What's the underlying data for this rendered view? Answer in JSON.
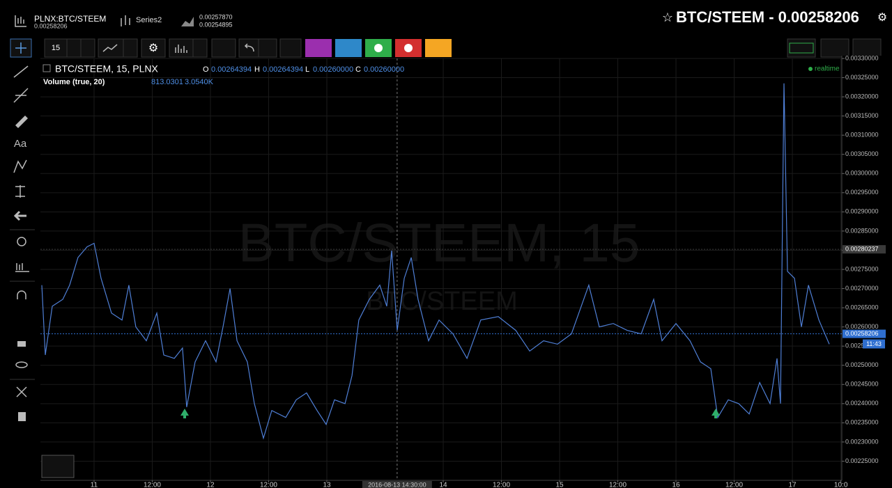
{
  "header": {
    "symbol": "PLNX:BTC/STEEM",
    "symbol_price": "0.00258206",
    "series": "Series2",
    "series_high": "0.00257870",
    "series_low": "0.00254895",
    "title": "BTC/STEEM - 0.00258206"
  },
  "toolbar": {
    "interval": "15",
    "left_text_tool": "Aa"
  },
  "legend": {
    "o": "O",
    "o_value": "0.00264394",
    "h": "H",
    "h_value": "0.00264394",
    "l": "L",
    "l_value": "0.00260000",
    "c": "C",
    "c_value": "0.00260000",
    "volume": "Volume (true, 20)",
    "volume_value": "813.0301",
    "volume_ma": "3.0540K",
    "status": "realtime"
  },
  "watermark": {
    "main": "BTC/STEEM, 15",
    "sub": "BTC/STEEM"
  },
  "chart_data": {
    "type": "line",
    "x": [
      10.551,
      10.581,
      10.641,
      10.731,
      10.79,
      10.862,
      10.94,
      11,
      11.06,
      11.15,
      11.24,
      11.299,
      11.359,
      11.449,
      11.539,
      11.599,
      11.689,
      11.76,
      11.796,
      11.868,
      11.958,
      12.048,
      12.108,
      12.168,
      12.228,
      12.317,
      12.377,
      12.455,
      12.527,
      12.647,
      12.737,
      12.826,
      12.916,
      12.994,
      13.066,
      13.156,
      13.216,
      13.275,
      13.365,
      13.455,
      13.515,
      13.557,
      13.605,
      13.665,
      13.725,
      13.784,
      13.874,
      13.964,
      14.084,
      14.204,
      14.323,
      14.473,
      14.623,
      14.743,
      14.862,
      14.982,
      15.102,
      15.251,
      15.341,
      15.461,
      15.581,
      15.701,
      15.808,
      15.88,
      16.0,
      16.12,
      16.21,
      16.299,
      16.359,
      16.449,
      16.539,
      16.629,
      16.719,
      16.808,
      16.868,
      16.898,
      16.928,
      16.958,
      17.018,
      17.078,
      17.138,
      17.228,
      17.317
    ],
    "series": [
      {
        "name": "BTC/STEEM, 15, PLNX",
        "color": "#4f7fd6",
        "values": [
          0.002709,
          0.002527,
          0.002654,
          0.002672,
          0.002709,
          0.002781,
          0.002809,
          0.002818,
          0.002727,
          0.002636,
          0.002618,
          0.002709,
          0.0026,
          0.002564,
          0.002636,
          0.002527,
          0.002518,
          0.002545,
          0.002391,
          0.002509,
          0.002564,
          0.002509,
          0.0026,
          0.0027,
          0.002564,
          0.002509,
          0.0024,
          0.00231,
          0.002382,
          0.002364,
          0.00241,
          0.002428,
          0.002382,
          0.002346,
          0.00241,
          0.0024,
          0.002473,
          0.002618,
          0.002672,
          0.002709,
          0.002654,
          0.002799,
          0.002591,
          0.002727,
          0.002781,
          0.002672,
          0.002564,
          0.002618,
          0.002582,
          0.002518,
          0.002618,
          0.002627,
          0.002591,
          0.002537,
          0.002564,
          0.002555,
          0.002582,
          0.002709,
          0.0026,
          0.002609,
          0.002591,
          0.002582,
          0.002672,
          0.002564,
          0.002609,
          0.002564,
          0.002509,
          0.002491,
          0.002364,
          0.00241,
          0.0024,
          0.002373,
          0.002455,
          0.0024,
          0.002518,
          0.0024,
          0.003235,
          0.002745,
          0.002727,
          0.0026,
          0.002709,
          0.002618,
          0.002555
        ]
      }
    ],
    "xlim": [
      10.539,
      17.425
    ],
    "xticks": [
      {
        "value": 11,
        "label": "11"
      },
      {
        "value": 11.5,
        "label": "12:00"
      },
      {
        "value": 12,
        "label": "12"
      },
      {
        "value": 12.5,
        "label": "12:00"
      },
      {
        "value": 13,
        "label": "13"
      },
      {
        "value": 14,
        "label": "14"
      },
      {
        "value": 14.5,
        "label": "12:00"
      },
      {
        "value": 15,
        "label": "15"
      },
      {
        "value": 15.5,
        "label": "12:00"
      },
      {
        "value": 16,
        "label": "16"
      },
      {
        "value": 16.5,
        "label": "12:00"
      },
      {
        "value": 17,
        "label": "17"
      },
      {
        "value": 17.417,
        "label": "10:0"
      }
    ],
    "ylim": [
      0.0022,
      0.0033
    ],
    "yticks": [
      {
        "value": 0.00225,
        "label": "0.00225000"
      },
      {
        "value": 0.0023,
        "label": "0.00230000"
      },
      {
        "value": 0.00235,
        "label": "0.00235000"
      },
      {
        "value": 0.0024,
        "label": "0.00240000"
      },
      {
        "value": 0.00245,
        "label": "0.00245000"
      },
      {
        "value": 0.0025,
        "label": "0.00250000"
      },
      {
        "value": 0.00255,
        "label": "0.00255000"
      },
      {
        "value": 0.0026,
        "label": "0.00260000"
      },
      {
        "value": 0.00265,
        "label": "0.00265000"
      },
      {
        "value": 0.0027,
        "label": "0.00270000"
      },
      {
        "value": 0.00275,
        "label": "0.00275000"
      },
      {
        "value": 0.0028,
        "label": "0.00280000"
      },
      {
        "value": 0.00285,
        "label": "0.00285000"
      },
      {
        "value": 0.0029,
        "label": "0.00290000"
      },
      {
        "value": 0.00295,
        "label": "0.00295000"
      },
      {
        "value": 0.003,
        "label": "0.00300000"
      },
      {
        "value": 0.00305,
        "label": "0.00305000"
      },
      {
        "value": 0.0031,
        "label": "0.00310000"
      },
      {
        "value": 0.00315,
        "label": "0.00315000"
      },
      {
        "value": 0.0032,
        "label": "0.00320000"
      },
      {
        "value": 0.00325,
        "label": "0.00325000"
      },
      {
        "value": 0.0033,
        "label": "0.00330000"
      }
    ],
    "grid": true,
    "price_lines": [
      {
        "value": 0.00280237,
        "label": "0.00280237",
        "color": "#3a3a3a"
      },
      {
        "value": 0.00258206,
        "label": "0.00258206",
        "color": "#2f6fd0"
      }
    ],
    "time_label": "11:43",
    "crosshair": {
      "value": 13.604,
      "label": "2016-08-13 14:30:00"
    }
  }
}
